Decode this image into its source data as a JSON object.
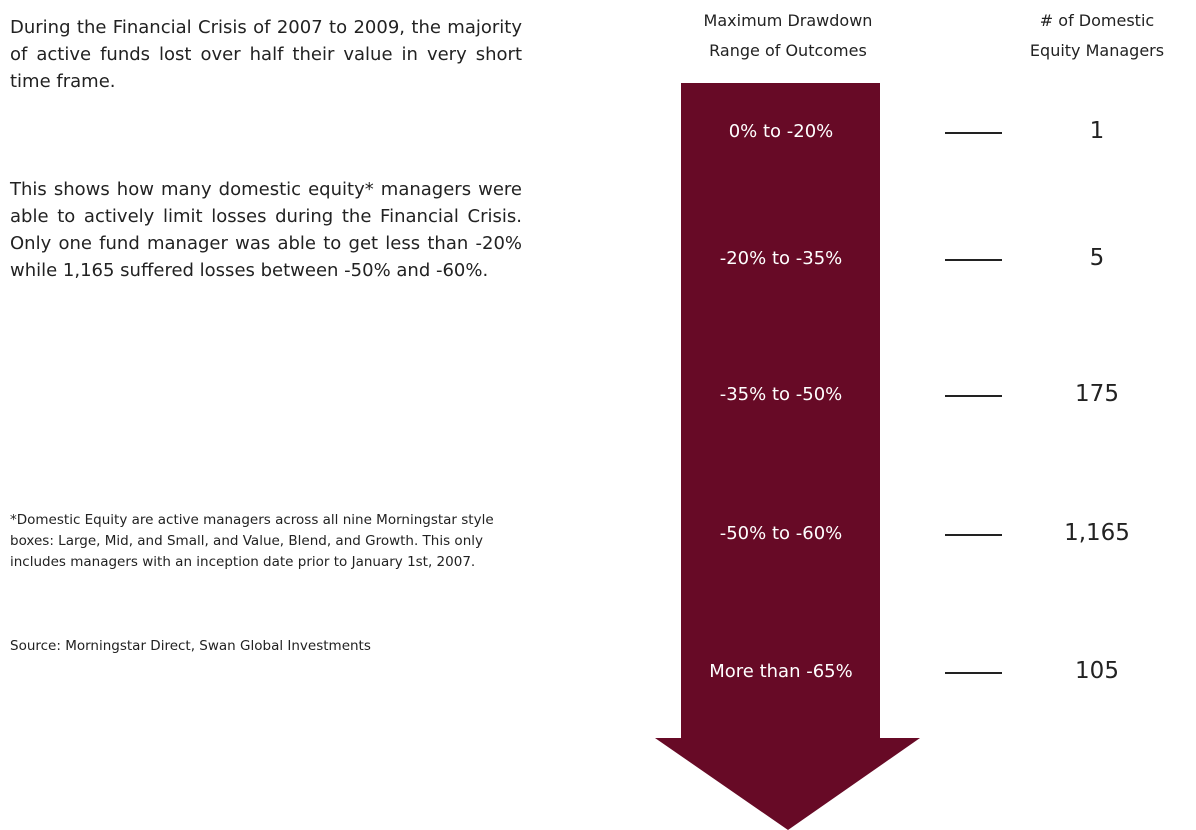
{
  "intro": {
    "paragraphs": [
      "During the Financial Crisis of 2007 to 2009, the majority of active funds lost over half their value in very short time frame.",
      "This shows how many domestic equity* managers were able to actively limit losses during the Financial Crisis. Only one fund manager was able to get less than -20% while 1,165 suffered losses between -50% and -60%."
    ]
  },
  "footnote": "*Domestic Equity are active managers across all nine Morningstar style boxes: Large, Mid, and Small, and Value, Blend, and Growth. This only includes managers with an inception date prior to January 1st, 2007.",
  "source": "Source: Morningstar Direct, Swan Global Investments",
  "headers": {
    "range": [
      "Maximum Drawdown",
      "Range of Outcomes"
    ],
    "count": [
      "# of Domestic",
      "Equity Managers"
    ]
  },
  "rows": [
    {
      "range": "0% to -20%",
      "count": "1"
    },
    {
      "range": "-20% to -35%",
      "count": "5"
    },
    {
      "range": "-35% to -50%",
      "count": "175"
    },
    {
      "range": "-50% to -60%",
      "count": "1,165"
    },
    {
      "range": "More than -65%",
      "count": "105"
    }
  ]
}
